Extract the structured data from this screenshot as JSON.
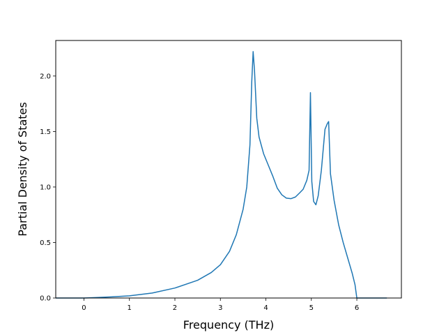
{
  "chart_data": {
    "type": "line",
    "title": "",
    "xlabel": "Frequency (THz)",
    "ylabel": "Partial Density of States",
    "xlim": [
      -0.62,
      6.98
    ],
    "ylim": [
      0.0,
      2.32
    ],
    "xticks": [
      0,
      1,
      2,
      3,
      4,
      5,
      6
    ],
    "yticks": [
      0.0,
      0.5,
      1.0,
      1.5,
      2.0
    ],
    "xtick_labels": [
      "0",
      "1",
      "2",
      "3",
      "4",
      "5",
      "6"
    ],
    "ytick_labels": [
      "0.0",
      "0.5",
      "1.0",
      "1.5",
      "2.0"
    ],
    "grid": false,
    "legend": false,
    "series": [
      {
        "color": "#1f77b4",
        "x": [
          -0.62,
          0.0,
          0.3,
          0.6,
          1.0,
          1.5,
          2.0,
          2.5,
          2.8,
          3.0,
          3.2,
          3.35,
          3.5,
          3.58,
          3.65,
          3.69,
          3.72,
          3.75,
          3.8,
          3.85,
          3.95,
          4.05,
          4.15,
          4.25,
          4.35,
          4.45,
          4.55,
          4.65,
          4.75,
          4.82,
          4.9,
          4.95,
          4.98,
          5.01,
          5.05,
          5.1,
          5.15,
          5.22,
          5.3,
          5.35,
          5.38,
          5.42,
          5.5,
          5.6,
          5.7,
          5.8,
          5.9,
          5.96,
          6.0,
          6.05,
          6.3,
          6.66
        ],
        "values": [
          0.0,
          0.0,
          0.005,
          0.01,
          0.02,
          0.045,
          0.09,
          0.16,
          0.23,
          0.3,
          0.42,
          0.57,
          0.8,
          1.0,
          1.38,
          1.95,
          2.22,
          2.05,
          1.62,
          1.45,
          1.3,
          1.2,
          1.1,
          0.99,
          0.93,
          0.9,
          0.895,
          0.91,
          0.95,
          0.98,
          1.06,
          1.15,
          1.85,
          1.05,
          0.87,
          0.84,
          0.92,
          1.15,
          1.52,
          1.57,
          1.59,
          1.12,
          0.88,
          0.66,
          0.5,
          0.36,
          0.22,
          0.12,
          0.0,
          0.0,
          0.0,
          0.0
        ]
      }
    ]
  }
}
